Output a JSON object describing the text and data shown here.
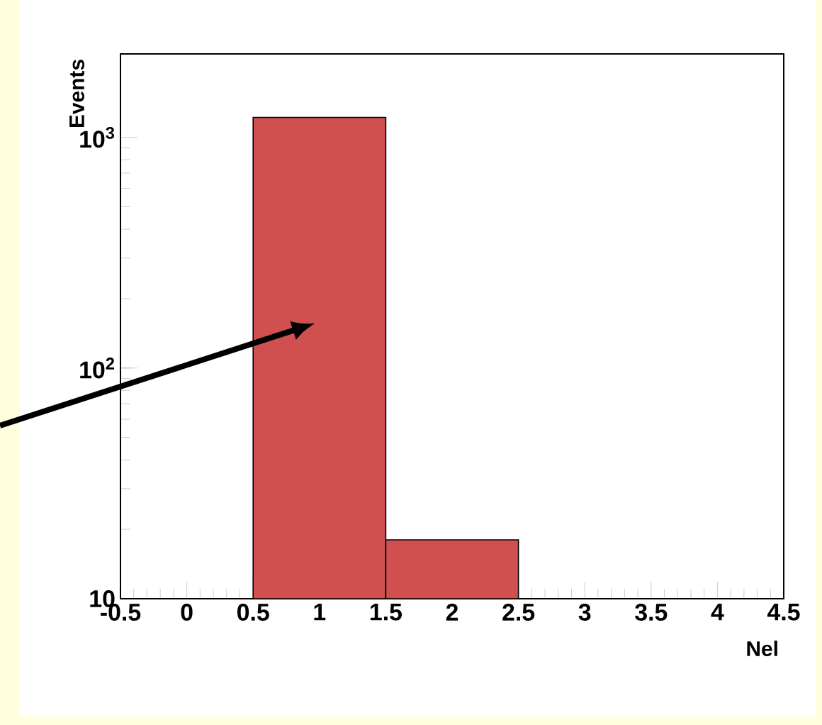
{
  "chart_data": {
    "type": "histogram",
    "xlabel": "Nel",
    "ylabel": "Events",
    "bins": [
      0.5,
      1.5,
      2.5
    ],
    "values": [
      1220,
      18
    ],
    "color": "#d05050",
    "log": "y",
    "xlim": [
      -0.5,
      4.5
    ],
    "ylim": [
      10,
      2300
    ],
    "xticks": [
      -0.5,
      0,
      0.5,
      1,
      1.5,
      2,
      2.5,
      3,
      3.5,
      4,
      4.5
    ],
    "yticks": [
      10,
      {
        "value": 100,
        "label": "10$^{2}$"
      },
      {
        "value": 1000,
        "label": "10$^{3}$"
      }
    ]
  }
}
